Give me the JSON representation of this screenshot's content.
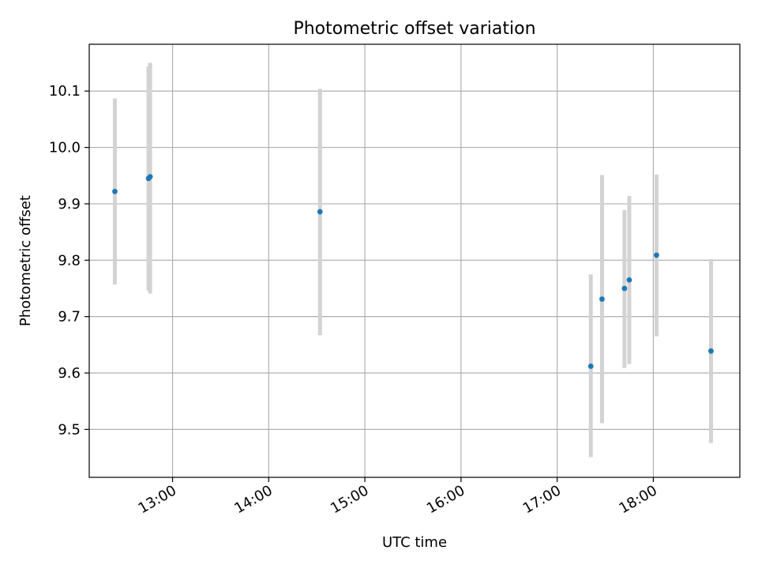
{
  "chart_data": {
    "type": "scatter",
    "title": "Photometric offset variation",
    "xlabel": "UTC time",
    "ylabel": "Photometric offset",
    "x_axis_type": "time",
    "xlim": [
      "12:08",
      "18:54"
    ],
    "ylim": [
      9.415,
      10.183
    ],
    "grid": true,
    "x_ticks": [
      "13:00",
      "14:00",
      "15:00",
      "16:00",
      "17:00",
      "18:00"
    ],
    "y_ticks": [
      9.5,
      9.6,
      9.7,
      9.8,
      9.9,
      10.0,
      10.1
    ],
    "y_tick_labels": [
      "9.5",
      "9.6",
      "9.7",
      "9.8",
      "9.9",
      "10.0",
      "10.1"
    ],
    "colors": {
      "point": "#1f77b4",
      "errorbar": "#d3d3d3",
      "grid": "#b0b0b0"
    },
    "series": [
      {
        "points": [
          {
            "x": "12:24",
            "y": 9.922,
            "ylo": 9.757,
            "yhi": 10.087
          },
          {
            "x": "12:45",
            "y": 9.945,
            "ylo": 9.746,
            "yhi": 10.144
          },
          {
            "x": "12:46",
            "y": 9.948,
            "ylo": 9.741,
            "yhi": 10.15
          },
          {
            "x": "14:32",
            "y": 9.886,
            "ylo": 9.667,
            "yhi": 10.104
          },
          {
            "x": "17:21",
            "y": 9.612,
            "ylo": 9.451,
            "yhi": 9.775
          },
          {
            "x": "17:28",
            "y": 9.731,
            "ylo": 9.511,
            "yhi": 9.951
          },
          {
            "x": "17:42",
            "y": 9.75,
            "ylo": 9.609,
            "yhi": 9.889
          },
          {
            "x": "17:45",
            "y": 9.765,
            "ylo": 9.616,
            "yhi": 9.914
          },
          {
            "x": "18:02",
            "y": 9.809,
            "ylo": 9.665,
            "yhi": 9.952
          },
          {
            "x": "18:36",
            "y": 9.639,
            "ylo": 9.476,
            "yhi": 9.802
          }
        ]
      }
    ]
  }
}
